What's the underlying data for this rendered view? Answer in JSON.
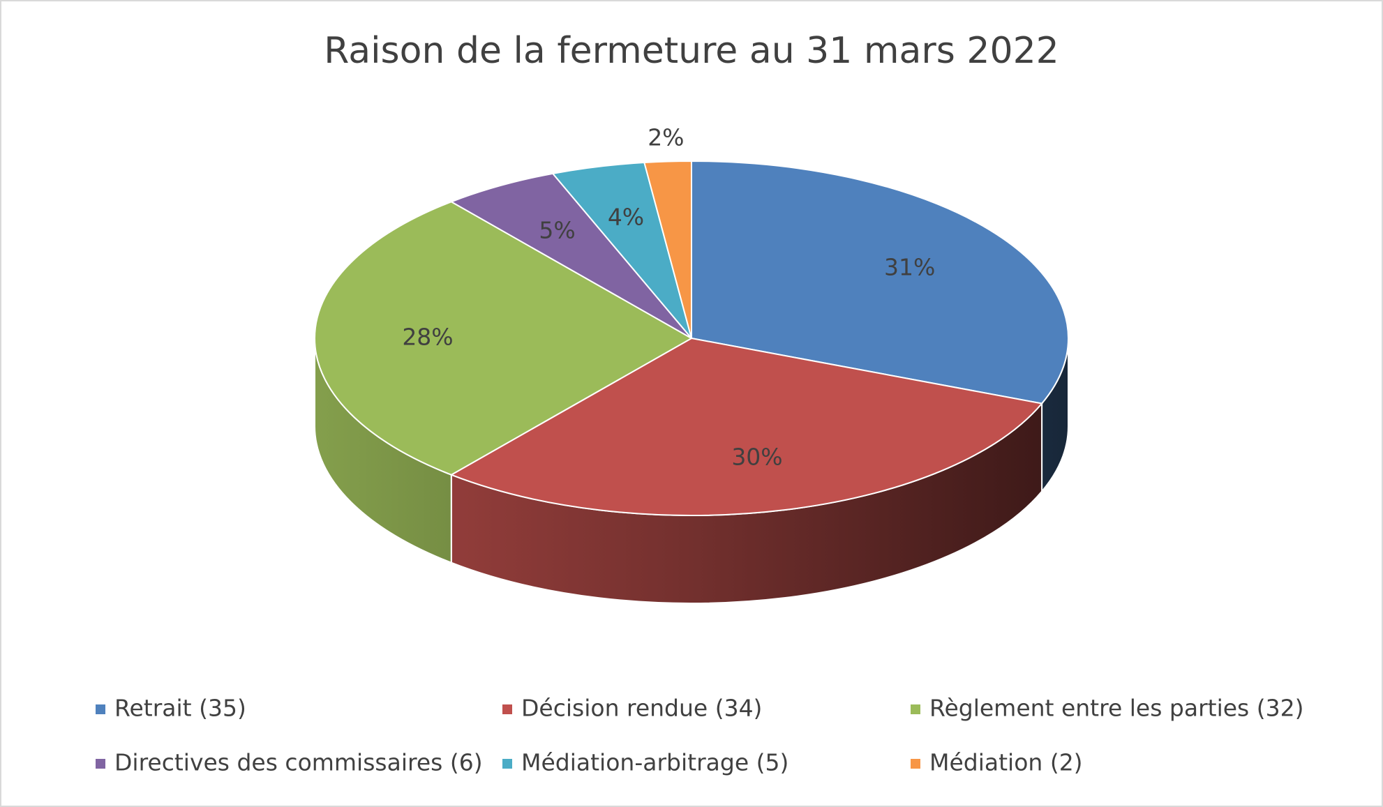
{
  "chart_data": {
    "type": "pie3d",
    "title": "Raison de la fermeture au 31 mars 2022",
    "categories": [
      "Retrait (35)",
      "Décision rendue (34)",
      "Règlement entre les parties (32)",
      "Directives des commissaires (6)",
      "Médiation-arbitrage (5)",
      "Médiation (2)"
    ],
    "values": [
      31,
      30,
      28,
      5,
      4,
      2
    ],
    "value_labels": [
      "31%",
      "30%",
      "28%",
      "5%",
      "4%",
      "2%"
    ],
    "colors": [
      "#4f81bd",
      "#c0504d",
      "#9bbb59",
      "#8064a2",
      "#4bacc6",
      "#f79646"
    ],
    "legend": "bottom"
  }
}
